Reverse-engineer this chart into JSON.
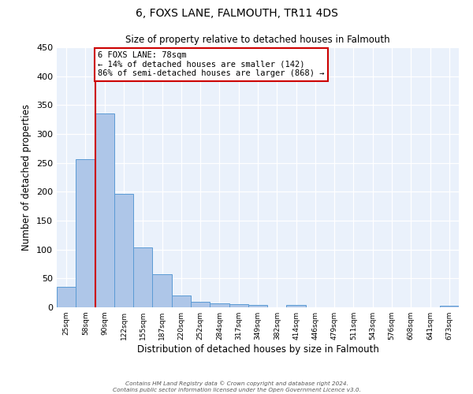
{
  "title": "6, FOXS LANE, FALMOUTH, TR11 4DS",
  "subtitle": "Size of property relative to detached houses in Falmouth",
  "xlabel": "Distribution of detached houses by size in Falmouth",
  "ylabel": "Number of detached properties",
  "bar_labels": [
    "25sqm",
    "58sqm",
    "90sqm",
    "122sqm",
    "155sqm",
    "187sqm",
    "220sqm",
    "252sqm",
    "284sqm",
    "317sqm",
    "349sqm",
    "382sqm",
    "414sqm",
    "446sqm",
    "479sqm",
    "511sqm",
    "543sqm",
    "576sqm",
    "608sqm",
    "641sqm",
    "673sqm"
  ],
  "bar_values": [
    35,
    256,
    335,
    196,
    103,
    57,
    20,
    10,
    7,
    5,
    4,
    0,
    4,
    0,
    0,
    0,
    0,
    0,
    0,
    0,
    3
  ],
  "bar_color": "#aec6e8",
  "bar_edge_color": "#5b9bd5",
  "bg_color": "#eaf1fb",
  "grid_color": "#ffffff",
  "vline_color": "#cc0000",
  "annotation_box_text": "6 FOXS LANE: 78sqm\n← 14% of detached houses are smaller (142)\n86% of semi-detached houses are larger (868) →",
  "annotation_box_color": "#cc0000",
  "ylim": [
    0,
    450
  ],
  "yticks": [
    0,
    50,
    100,
    150,
    200,
    250,
    300,
    350,
    400,
    450
  ],
  "footer_line1": "Contains HM Land Registry data © Crown copyright and database right 2024.",
  "footer_line2": "Contains public sector information licensed under the Open Government Licence v3.0."
}
